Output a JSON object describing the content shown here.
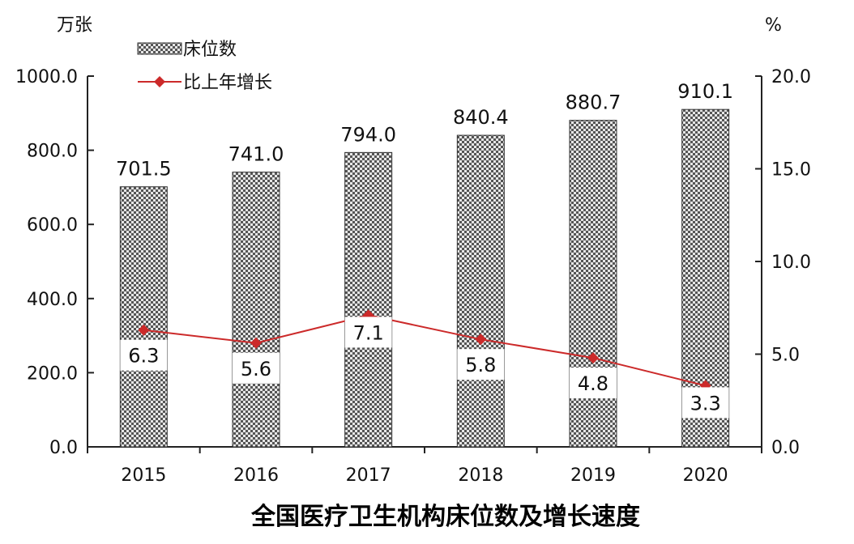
{
  "chart_data": {
    "type": "bar",
    "title": "全国医疗卫生机构床位数及增长速度",
    "y_left_unit": "万张",
    "y_right_unit": "%",
    "categories": [
      "2015",
      "2016",
      "2017",
      "2018",
      "2019",
      "2020"
    ],
    "series": [
      {
        "name": "床位数",
        "type": "bar",
        "axis": "left",
        "values": [
          701.5,
          741.0,
          794.0,
          840.4,
          880.7,
          910.1
        ],
        "labels": [
          "701.5",
          "741.0",
          "794.0",
          "840.4",
          "880.7",
          "910.1"
        ]
      },
      {
        "name": "比上年增长",
        "type": "line",
        "axis": "right",
        "values": [
          6.3,
          5.6,
          7.1,
          5.8,
          4.8,
          3.3
        ],
        "labels": [
          "6.3",
          "5.6",
          "7.1",
          "5.8",
          "4.8",
          "3.3"
        ]
      }
    ],
    "y_left": {
      "range": [
        0,
        1000
      ],
      "ticks": [
        0,
        200,
        400,
        600,
        800,
        1000
      ],
      "tick_labels": [
        "0.0",
        "200.0",
        "400.0",
        "600.0",
        "800.0",
        "1000.0"
      ]
    },
    "y_right": {
      "range": [
        0,
        20
      ],
      "ticks": [
        0,
        5,
        10,
        15,
        20
      ],
      "tick_labels": [
        "0.0",
        "5.0",
        "10.0",
        "15.0",
        "20.0"
      ]
    },
    "legend_position": "top-left",
    "grid": false,
    "colors": {
      "bar_dark": "#555555",
      "bar_light": "#e6e6e6",
      "line": "#cc2a2a",
      "axis": "#222222"
    }
  }
}
